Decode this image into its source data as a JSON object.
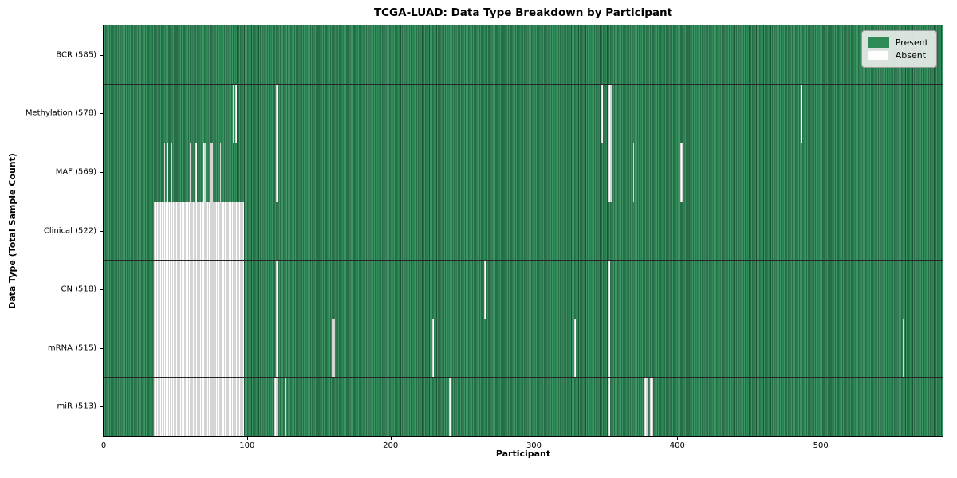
{
  "figure": {
    "title": "TCGA-LUAD: Data Type Breakdown by Participant",
    "xlabel": "Participant",
    "ylabel": "Data Type (Total Sample Count)"
  },
  "legend": {
    "items": [
      {
        "name": "present",
        "label": "Present",
        "color": "#2e8b57"
      },
      {
        "name": "absent",
        "label": "Absent",
        "color": "#ffffff"
      }
    ]
  },
  "chart_data": {
    "type": "heatmap",
    "title": "TCGA-LUAD: Data Type Breakdown by Participant",
    "xlabel": "Participant",
    "ylabel": "Data Type (Total Sample Count)",
    "n_participants": 585,
    "x_ticks": [
      0,
      100,
      200,
      300,
      400,
      500
    ],
    "xlim": [
      0,
      585
    ],
    "grid": false,
    "legend_position": "upper right",
    "colors": {
      "present": "#2e8b57",
      "present_edge": "#1b5434",
      "present_light": "#4d9c72",
      "absent": "#ffffff",
      "absent_edge": "#a8a8a8",
      "row_divider": "#262626"
    },
    "rows": [
      {
        "label": "BCR (585)",
        "data_type": "BCR",
        "present_count": 585,
        "absent_ranges": []
      },
      {
        "label": "Methylation (578)",
        "data_type": "Methylation",
        "present_count": 578,
        "absent_ranges": [
          [
            90,
            1
          ],
          [
            92,
            1
          ],
          [
            120,
            1
          ],
          [
            347,
            1
          ],
          [
            352,
            2
          ],
          [
            486,
            1
          ]
        ]
      },
      {
        "label": "MAF (569)",
        "data_type": "MAF",
        "present_count": 569,
        "absent_ranges": [
          [
            42,
            1
          ],
          [
            44,
            1
          ],
          [
            47,
            1
          ],
          [
            60,
            1
          ],
          [
            64,
            1
          ],
          [
            69,
            2
          ],
          [
            74,
            2
          ],
          [
            81,
            1
          ],
          [
            120,
            1
          ],
          [
            352,
            2
          ],
          [
            369,
            1
          ],
          [
            402,
            2
          ]
        ]
      },
      {
        "label": "Clinical (522)",
        "data_type": "Clinical",
        "present_count": 522,
        "absent_ranges": [
          [
            35,
            63
          ]
        ]
      },
      {
        "label": "CN (518)",
        "data_type": "CN",
        "present_count": 518,
        "absent_ranges": [
          [
            35,
            63
          ],
          [
            120,
            1
          ],
          [
            265,
            2
          ],
          [
            352,
            1
          ]
        ]
      },
      {
        "label": "mRNA (515)",
        "data_type": "mRNA",
        "present_count": 515,
        "absent_ranges": [
          [
            35,
            63
          ],
          [
            120,
            1
          ],
          [
            159,
            2
          ],
          [
            229,
            1
          ],
          [
            328,
            1
          ],
          [
            352,
            1
          ],
          [
            557,
            1
          ]
        ]
      },
      {
        "label": "miR (513)",
        "data_type": "miR",
        "present_count": 513,
        "absent_ranges": [
          [
            35,
            63
          ],
          [
            119,
            2
          ],
          [
            126,
            1
          ],
          [
            241,
            1
          ],
          [
            352,
            1
          ],
          [
            377,
            2
          ],
          [
            381,
            2
          ]
        ]
      }
    ]
  }
}
